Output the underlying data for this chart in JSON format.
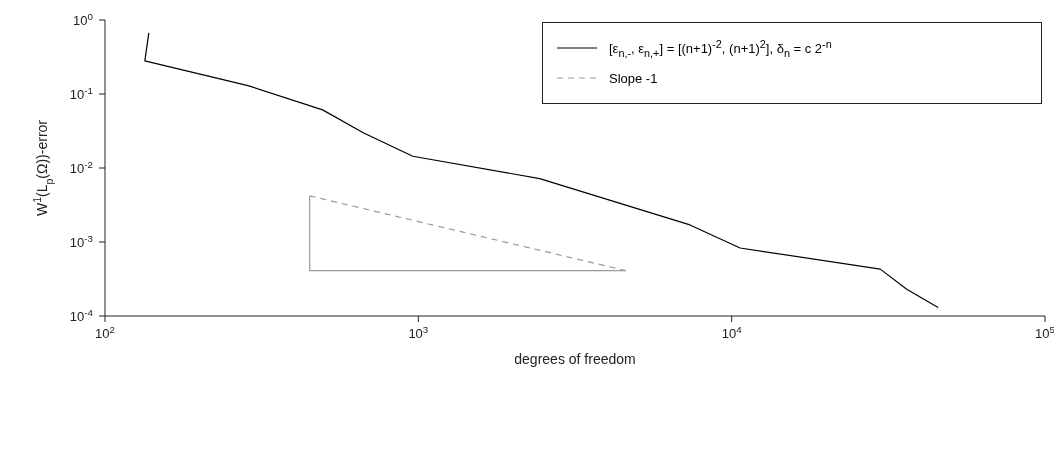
{
  "chart_data": {
    "type": "line",
    "xlabel": "degrees of freedom",
    "ylabel": "W$^{1}$(L$_{p}$(Ω))-error",
    "log": "xy",
    "grid": false,
    "legend": "top right",
    "marker": "none",
    "xlim": [
      100,
      100000
    ],
    "ylim": [
      0.0001,
      1
    ],
    "xticks": [
      {
        "value": 100,
        "label": "10$^{2}$"
      },
      {
        "value": 1000,
        "label": "10$^{3}$"
      },
      {
        "value": 10000,
        "label": "10$^{4}$"
      },
      {
        "value": 100000,
        "label": "10$^{5}$"
      }
    ],
    "yticks": [
      {
        "value": 0.0001,
        "label": "10$^{-4}$"
      },
      {
        "value": 0.001,
        "label": "10$^{-3}$"
      },
      {
        "value": 0.01,
        "label": "10$^{-2}$"
      },
      {
        "value": 0.1,
        "label": "10$^{-1}$"
      },
      {
        "value": 1,
        "label": "10$^{0}$"
      }
    ],
    "series": [
      {
        "name": "[ε$_{n,-}$, ε$_{n,+}$] = [(n+1)$^{-2}$, (n+1)$^{2}$], δ$_{n}$ = c 2$^{-n}$",
        "color": "#000000",
        "line_style": "solid",
        "x": [
          138,
          134,
          286,
          495,
          667,
          960,
          2440,
          7360,
          10640,
          29800,
          36200,
          45600
        ],
        "values": [
          0.67,
          0.28,
          0.13,
          0.061,
          0.03,
          0.0144,
          0.0072,
          0.0017,
          0.00083,
          0.00043,
          0.00023,
          0.00013
        ]
      },
      {
        "name": "Slope -1",
        "color": "#999999",
        "line_style": "dashed",
        "x": [
          450,
          4600
        ],
        "values": [
          0.0042,
          0.00041
        ]
      },
      {
        "color": "#999999",
        "line_style": "solid",
        "x": [
          450,
          450,
          4600
        ],
        "values": [
          0.0042,
          0.00041,
          0.00041
        ]
      }
    ]
  }
}
